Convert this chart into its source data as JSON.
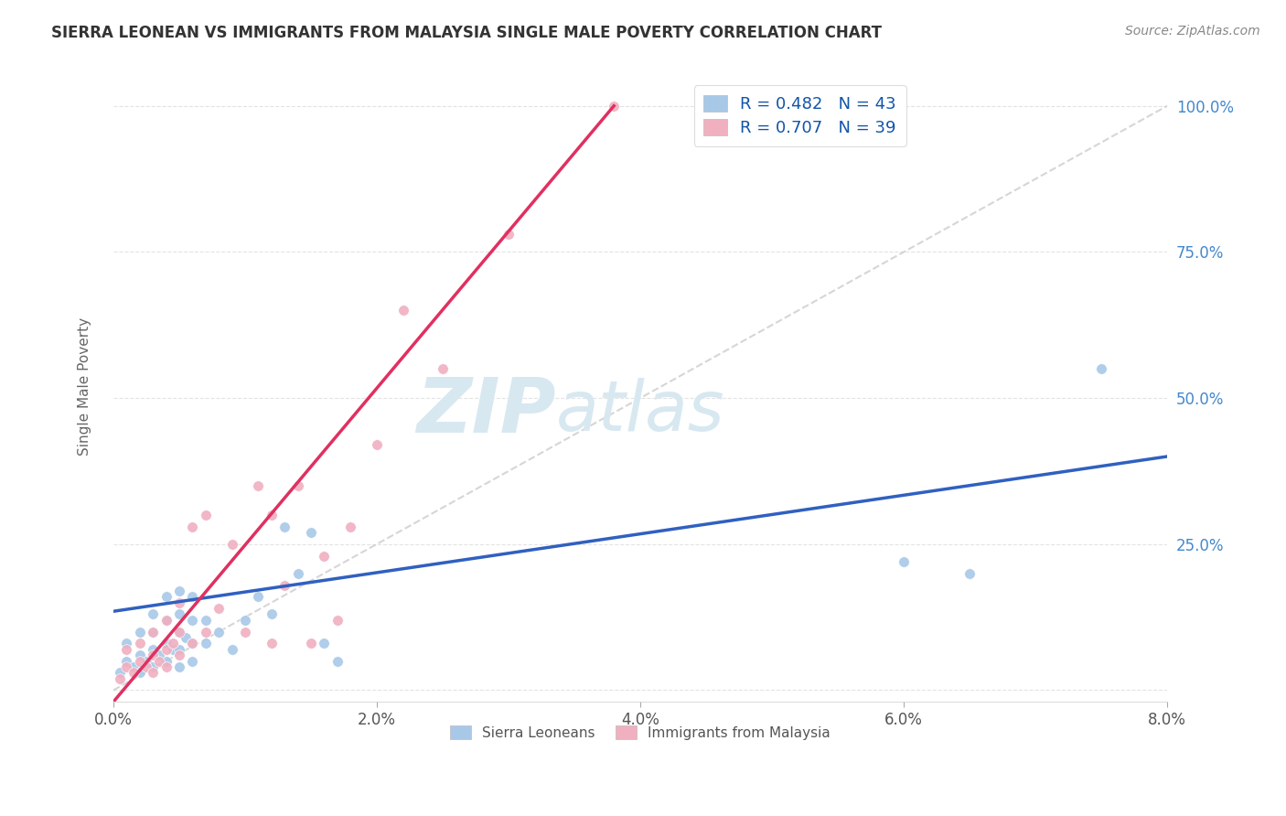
{
  "title": "SIERRA LEONEAN VS IMMIGRANTS FROM MALAYSIA SINGLE MALE POVERTY CORRELATION CHART",
  "source": "Source: ZipAtlas.com",
  "ylabel": "Single Male Poverty",
  "xlim": [
    0.0,
    0.08
  ],
  "ylim": [
    -0.02,
    1.06
  ],
  "xticks": [
    0.0,
    0.02,
    0.04,
    0.06,
    0.08
  ],
  "xtick_labels": [
    "0.0%",
    "2.0%",
    "4.0%",
    "6.0%",
    "8.0%"
  ],
  "yticks": [
    0.0,
    0.25,
    0.5,
    0.75,
    1.0
  ],
  "ytick_labels": [
    "",
    "25.0%",
    "50.0%",
    "75.0%",
    "100.0%"
  ],
  "legend_labels": [
    "Sierra Leoneans",
    "Immigrants from Malaysia"
  ],
  "sierra_R": 0.482,
  "sierra_N": 43,
  "malaysia_R": 0.707,
  "malaysia_N": 39,
  "blue_color": "#A8C8E8",
  "pink_color": "#F0B0C0",
  "blue_line_color": "#3060C0",
  "pink_line_color": "#E03060",
  "watermark_zip": "ZIP",
  "watermark_atlas": "atlas",
  "blue_scatter_x": [
    0.0005,
    0.001,
    0.001,
    0.0015,
    0.002,
    0.002,
    0.002,
    0.0025,
    0.003,
    0.003,
    0.003,
    0.003,
    0.0035,
    0.004,
    0.004,
    0.004,
    0.004,
    0.0045,
    0.005,
    0.005,
    0.005,
    0.005,
    0.005,
    0.0055,
    0.006,
    0.006,
    0.006,
    0.006,
    0.007,
    0.007,
    0.008,
    0.009,
    0.01,
    0.011,
    0.012,
    0.013,
    0.014,
    0.015,
    0.016,
    0.017,
    0.06,
    0.065,
    0.075
  ],
  "blue_scatter_y": [
    0.03,
    0.05,
    0.08,
    0.04,
    0.03,
    0.06,
    0.1,
    0.05,
    0.04,
    0.07,
    0.1,
    0.13,
    0.06,
    0.05,
    0.08,
    0.12,
    0.16,
    0.07,
    0.04,
    0.07,
    0.1,
    0.13,
    0.17,
    0.09,
    0.05,
    0.08,
    0.12,
    0.16,
    0.08,
    0.12,
    0.1,
    0.07,
    0.12,
    0.16,
    0.13,
    0.28,
    0.2,
    0.27,
    0.08,
    0.05,
    0.22,
    0.2,
    0.55
  ],
  "pink_scatter_x": [
    0.0005,
    0.001,
    0.001,
    0.0015,
    0.002,
    0.002,
    0.0025,
    0.003,
    0.003,
    0.003,
    0.0035,
    0.004,
    0.004,
    0.004,
    0.0045,
    0.005,
    0.005,
    0.005,
    0.006,
    0.006,
    0.007,
    0.007,
    0.008,
    0.009,
    0.01,
    0.011,
    0.012,
    0.012,
    0.013,
    0.014,
    0.015,
    0.016,
    0.017,
    0.018,
    0.02,
    0.022,
    0.025,
    0.03,
    0.038
  ],
  "pink_scatter_y": [
    0.02,
    0.04,
    0.07,
    0.03,
    0.05,
    0.08,
    0.04,
    0.03,
    0.06,
    0.1,
    0.05,
    0.04,
    0.07,
    0.12,
    0.08,
    0.06,
    0.1,
    0.15,
    0.08,
    0.28,
    0.1,
    0.3,
    0.14,
    0.25,
    0.1,
    0.35,
    0.3,
    0.08,
    0.18,
    0.35,
    0.08,
    0.23,
    0.12,
    0.28,
    0.42,
    0.65,
    0.55,
    0.78,
    1.0
  ],
  "blue_trend_x": [
    0.0,
    0.08
  ],
  "blue_trend_y": [
    0.135,
    0.4
  ],
  "pink_trend_x": [
    0.0,
    0.038
  ],
  "pink_trend_y": [
    -0.02,
    1.0
  ],
  "ref_line_x": [
    0.0,
    0.08
  ],
  "ref_line_y": [
    0.0,
    1.0
  ]
}
